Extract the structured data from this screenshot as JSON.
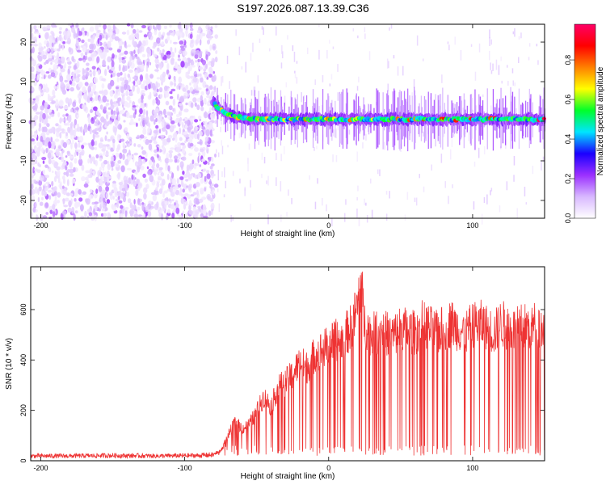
{
  "title": "S197.2026.087.13.39.C36",
  "chart_data": [
    {
      "type": "heatmap",
      "xlabel": "Height of straight line (km)",
      "ylabel": "Frequency (Hz)",
      "xlim": [
        -207,
        150
      ],
      "ylim": [
        -24.5,
        24.5
      ],
      "x_ticks": [
        -200,
        -100,
        0,
        100
      ],
      "y_ticks": [
        -20,
        -10,
        0,
        10,
        20
      ],
      "colorbar": {
        "label": "Normalized spectral amplitude",
        "range": [
          0,
          0.98
        ],
        "ticks": [
          0.0,
          0.2,
          0.4,
          0.6,
          0.8
        ],
        "tick_labels": [
          "0.0",
          "0.2",
          "0.4",
          "0.6",
          "0.8"
        ],
        "colormap": [
          "#ffffff",
          "#d8b8ff",
          "#9b30ff",
          "#1a00ff",
          "#00e5ff",
          "#00ff2a",
          "#ffff00",
          "#ff8000",
          "#ff0000",
          "#ff0066"
        ]
      },
      "series_description": {
        "noise_region_km": [
          -207,
          -80
        ],
        "signal_onset_km": -80,
        "signal_onset_frequency_hz": 5,
        "signal_frequency_hz_after": 0.5
      }
    },
    {
      "type": "line",
      "xlabel": "Height of straight line (km)",
      "ylabel": "SNR (10 * v/v)",
      "xlim": [
        -207,
        150
      ],
      "ylim": [
        0,
        770
      ],
      "x_ticks": [
        -200,
        -100,
        0,
        100
      ],
      "y_ticks": [
        0,
        200,
        400,
        600
      ],
      "color": "#ee3333",
      "x": [
        -207,
        -180,
        -150,
        -120,
        -90,
        -80,
        -75,
        -70,
        -65,
        -60,
        -55,
        -50,
        -45,
        -40,
        -35,
        -30,
        -25,
        -20,
        -15,
        -10,
        -5,
        0,
        5,
        10,
        15,
        20,
        22,
        25,
        30,
        35,
        40,
        45,
        50,
        55,
        60,
        65,
        70,
        75,
        80,
        85,
        90,
        95,
        100,
        105,
        110,
        115,
        120,
        125,
        130,
        135,
        140,
        145,
        150
      ],
      "values": [
        20,
        20,
        22,
        20,
        22,
        25,
        40,
        100,
        160,
        130,
        150,
        200,
        260,
        220,
        300,
        320,
        350,
        400,
        380,
        430,
        450,
        470,
        490,
        500,
        540,
        620,
        740,
        560,
        510,
        530,
        520,
        510,
        540,
        530,
        520,
        560,
        540,
        520,
        540,
        560,
        540,
        520,
        550,
        560,
        540,
        520,
        560,
        540,
        530,
        550,
        540,
        560,
        520
      ]
    }
  ]
}
